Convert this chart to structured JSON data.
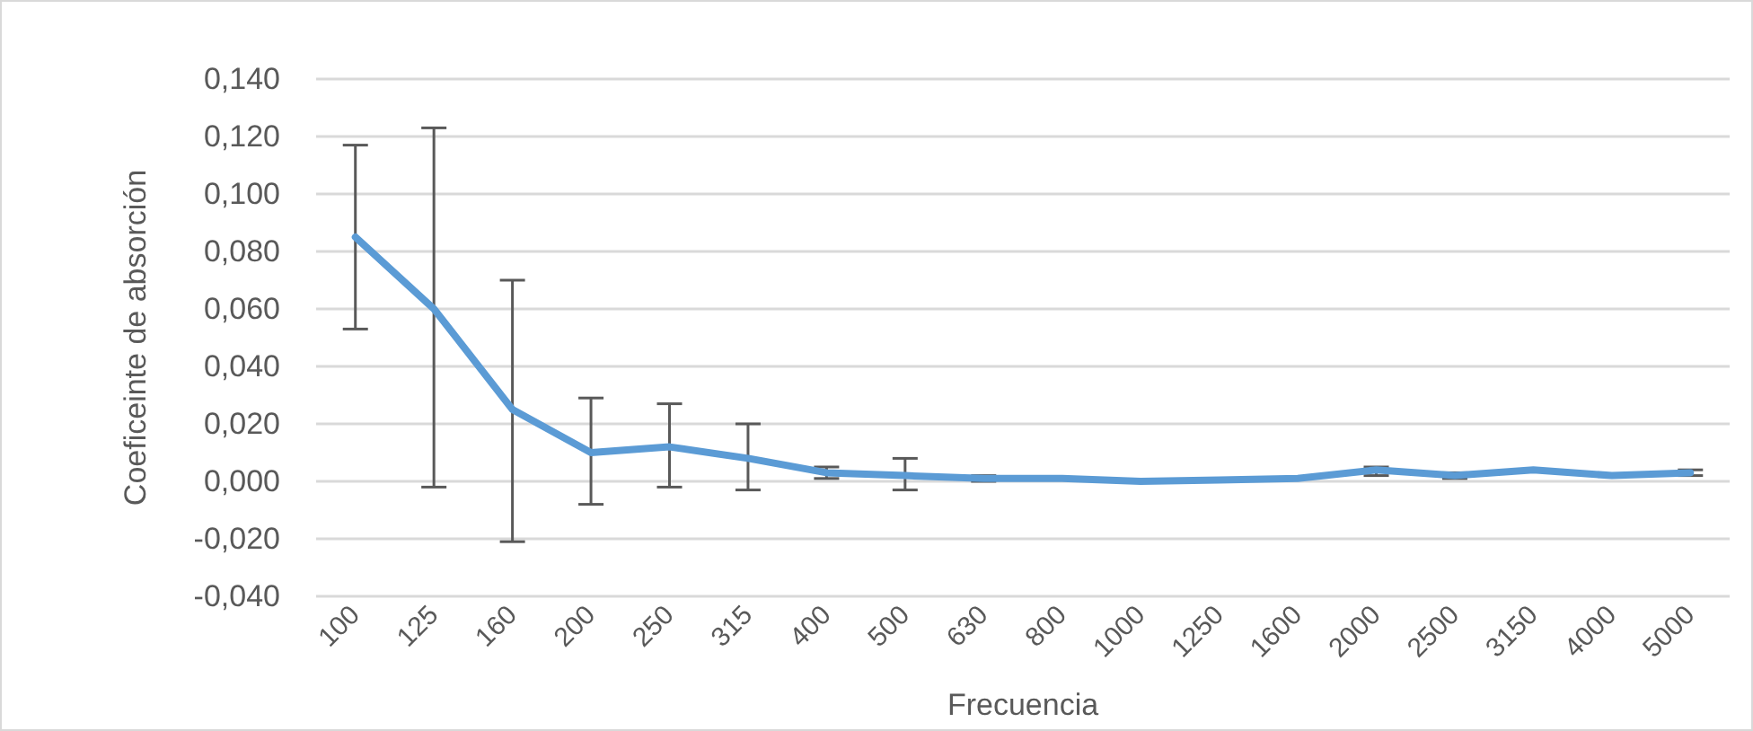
{
  "chart_data": {
    "type": "line",
    "xlabel": "Frecuencia",
    "ylabel": "Coeficeinte de absorción",
    "categories": [
      "100",
      "125",
      "160",
      "200",
      "250",
      "315",
      "400",
      "500",
      "630",
      "800",
      "1000",
      "1250",
      "1600",
      "2000",
      "2500",
      "3150",
      "4000",
      "5000"
    ],
    "series": [
      {
        "color": "#5b9bd5",
        "values": [
          0.085,
          0.06,
          0.025,
          0.01,
          0.012,
          0.008,
          0.003,
          0.002,
          0.001,
          0.001,
          0.0,
          0.0005,
          0.001,
          0.004,
          0.002,
          0.004,
          0.002,
          0.003
        ],
        "errors": [
          [
            0.053,
            0.117
          ],
          [
            -0.002,
            0.123
          ],
          [
            -0.021,
            0.07
          ],
          [
            -0.008,
            0.029
          ],
          [
            -0.002,
            0.027
          ],
          [
            -0.003,
            0.02
          ],
          [
            0.001,
            0.005
          ],
          [
            -0.003,
            0.008
          ],
          [
            0.0,
            0.002
          ],
          null,
          null,
          null,
          null,
          [
            0.002,
            0.005
          ],
          [
            0.001,
            0.003
          ],
          null,
          null,
          [
            0.002,
            0.004
          ]
        ]
      }
    ],
    "ylim": [
      -0.04,
      0.14
    ],
    "yticks": [
      {
        "value": -0.04,
        "label": "-0,040"
      },
      {
        "value": -0.02,
        "label": "-0,020"
      },
      {
        "value": 0,
        "label": "0,000"
      },
      {
        "value": 0.02,
        "label": "0,020"
      },
      {
        "value": 0.04,
        "label": "0,040"
      },
      {
        "value": 0.06,
        "label": "0,060"
      },
      {
        "value": 0.08,
        "label": "0,080"
      },
      {
        "value": 0.1,
        "label": "0,100"
      },
      {
        "value": 0.12,
        "label": "0,120"
      },
      {
        "value": 0.14,
        "label": "0,140"
      }
    ],
    "grid": "y",
    "marker": "none",
    "line_style": "solid"
  }
}
